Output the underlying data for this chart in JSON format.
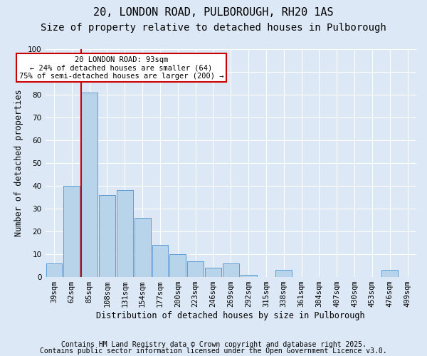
{
  "title_line1": "20, LONDON ROAD, PULBOROUGH, RH20 1AS",
  "title_line2": "Size of property relative to detached houses in Pulborough",
  "xlabel": "Distribution of detached houses by size in Pulborough",
  "ylabel": "Number of detached properties",
  "categories": [
    "39sqm",
    "62sqm",
    "85sqm",
    "108sqm",
    "131sqm",
    "154sqm",
    "177sqm",
    "200sqm",
    "223sqm",
    "246sqm",
    "269sqm",
    "292sqm",
    "315sqm",
    "338sqm",
    "361sqm",
    "384sqm",
    "407sqm",
    "430sqm",
    "453sqm",
    "476sqm",
    "499sqm"
  ],
  "values": [
    6,
    40,
    81,
    36,
    38,
    26,
    14,
    10,
    7,
    4,
    6,
    1,
    0,
    3,
    0,
    0,
    0,
    0,
    0,
    3,
    0
  ],
  "bar_color": "#b8d4ea",
  "bar_edge_color": "#5b9bd5",
  "vline_color": "#cc0000",
  "annotation_text": "20 LONDON ROAD: 93sqm\n← 24% of detached houses are smaller (64)\n75% of semi-detached houses are larger (200) →",
  "annotation_box_color": "#ffffff",
  "annotation_box_edge": "#cc0000",
  "ylim_max": 100,
  "yticks": [
    0,
    10,
    20,
    30,
    40,
    50,
    60,
    70,
    80,
    90,
    100
  ],
  "footer_line1": "Contains HM Land Registry data © Crown copyright and database right 2025.",
  "footer_line2": "Contains public sector information licensed under the Open Government Licence v3.0.",
  "bg_color": "#dce8f5",
  "grid_color": "#ffffff",
  "title_fontsize": 11,
  "subtitle_fontsize": 10,
  "axis_label_fontsize": 8.5,
  "tick_fontsize": 7.5,
  "footer_fontsize": 7
}
